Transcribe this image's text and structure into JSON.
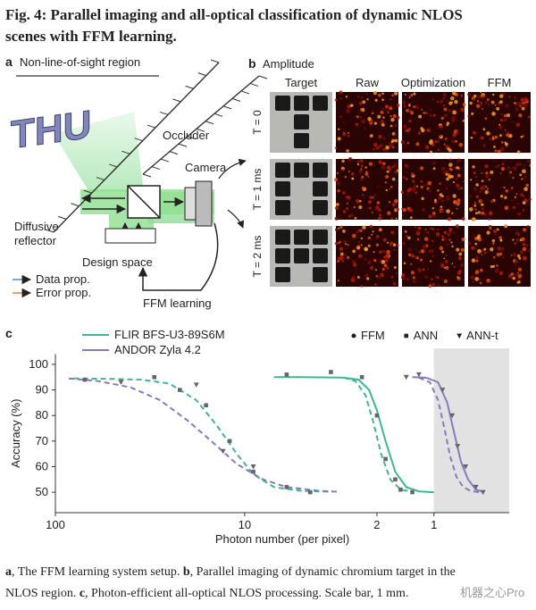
{
  "title": "Fig. 4: Parallel imaging and all-optical classification of dynamic NLOS scenes with FFM learning.",
  "panel_a": {
    "label": "a",
    "title": "Non-line-of-sight region",
    "thu": "THU",
    "occluder": "Occluder",
    "camera": "Camera",
    "reflector": [
      "Diffusive",
      "reflector"
    ],
    "design": "Design space",
    "ffm": "FFM learning",
    "legend": [
      {
        "text": "Data prop.",
        "color": "#4a8fd6"
      },
      {
        "text": "Error prop.",
        "color": "#e8823a"
      }
    ]
  },
  "panel_b": {
    "label": "b",
    "title": "Amplitude",
    "columns": [
      "Target",
      "Raw",
      "Optimization",
      "FFM"
    ],
    "rows": [
      "T = 0",
      "T = 1 ms",
      "T = 2 ms"
    ]
  },
  "chart_data": {
    "type": "line",
    "label": "c",
    "xlabel": "Photon number (per pixel)",
    "ylabel": "Accuracy (%)",
    "xscale": "log",
    "xlim": [
      100,
      0.4
    ],
    "ylim": [
      42,
      104
    ],
    "xticks": [
      100,
      10,
      2,
      1
    ],
    "yticks": [
      50,
      60,
      70,
      80,
      90,
      100
    ],
    "shaded_xrange": [
      1,
      0.4
    ],
    "shade_color": "#e2e2e2",
    "cameras": [
      {
        "name": "FLIR BFS-U3-89S6M",
        "color": "#3cb88a"
      },
      {
        "name": "ANDOR Zyla 4.2",
        "color": "#8878c0"
      }
    ],
    "markers": [
      {
        "name": "FFM",
        "marker": "circle"
      },
      {
        "name": "ANN",
        "marker": "square"
      },
      {
        "name": "ANN-t",
        "marker": "triangle"
      }
    ],
    "series": [
      {
        "camera": 0,
        "dashed": true,
        "x": [
          80,
          50,
          35,
          25,
          18,
          14,
          11,
          9,
          7,
          5,
          3.5
        ],
        "values": [
          94.5,
          94.3,
          94,
          92.5,
          86,
          76,
          65,
          57,
          52,
          50.5,
          50.2
        ]
      },
      {
        "camera": 1,
        "dashed": true,
        "x": [
          85,
          60,
          40,
          28,
          20,
          15,
          11,
          8,
          6,
          4,
          3.2
        ],
        "values": [
          94.5,
          93.5,
          91,
          86,
          78,
          70,
          61,
          55,
          52,
          50.5,
          50.2
        ]
      },
      {
        "camera": 0,
        "dashed": false,
        "x": [
          7,
          5,
          3,
          2.5,
          2.2,
          2,
          1.8,
          1.6,
          1.4,
          1.2,
          1.0
        ],
        "values": [
          95,
          95,
          94.8,
          94,
          90,
          82,
          70,
          58,
          52,
          50.3,
          50
        ]
      },
      {
        "camera": 0,
        "dashed": true,
        "x": [
          3.0,
          2.6,
          2.3,
          2.1,
          1.9,
          1.7,
          1.5,
          1.3
        ],
        "values": [
          94.8,
          93.5,
          88,
          78,
          65,
          55,
          51,
          50.2
        ]
      },
      {
        "camera": 1,
        "dashed": false,
        "x": [
          1.3,
          1.1,
          0.95,
          0.85,
          0.78,
          0.72,
          0.66,
          0.6,
          0.55
        ],
        "values": [
          95,
          94.8,
          93,
          85,
          73,
          62,
          55,
          51,
          50.2
        ]
      },
      {
        "camera": 1,
        "dashed": true,
        "x": [
          1.2,
          1.05,
          0.95,
          0.88,
          0.82,
          0.76,
          0.7,
          0.64,
          0.58
        ],
        "values": [
          94.8,
          93,
          86,
          75,
          64,
          56,
          52,
          50.5,
          50
        ]
      }
    ],
    "points": [
      {
        "camera": 0,
        "marker": 1,
        "x": [
          70,
          30,
          22,
          16,
          12,
          9,
          6,
          4.5,
          6,
          3.5,
          2.4,
          2.0,
          1.8,
          1.6,
          1.5,
          1.3
        ],
        "values": [
          94,
          95,
          90,
          84,
          70,
          58,
          52,
          50,
          96,
          97,
          95,
          80,
          63,
          55,
          51,
          50
        ]
      },
      {
        "camera": 1,
        "marker": 2,
        "x": [
          45,
          18,
          13,
          9,
          1.4,
          1.2,
          0.9,
          0.8,
          0.75,
          0.68,
          0.6,
          0.55
        ],
        "values": [
          93,
          92,
          66,
          60,
          95,
          96,
          90,
          80,
          68,
          60,
          52,
          50
        ]
      }
    ]
  },
  "caption": [
    {
      "label": "a",
      "text": ", The FFM learning system setup. "
    },
    {
      "label": "b",
      "text": ", Parallel imaging of dynamic chromium target in the NLOS region. "
    },
    {
      "label": "c",
      "text": ", Photon-efficient all-optical NLOS processing. Scale bar, 1 mm."
    }
  ],
  "watermark": "机器之心Pro"
}
